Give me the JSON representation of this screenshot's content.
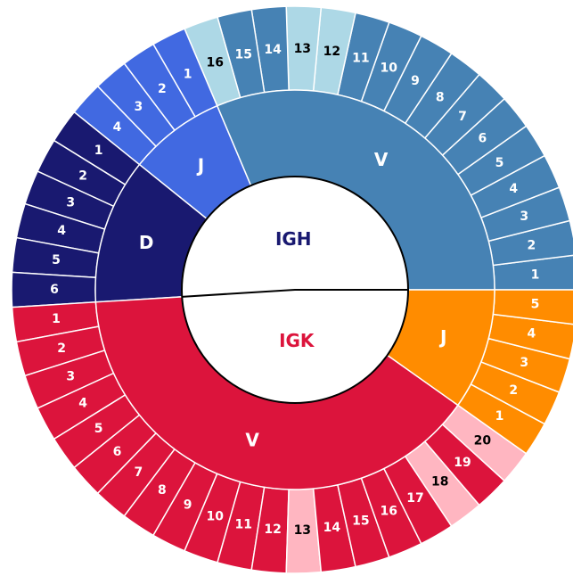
{
  "loci": [
    {
      "label": "IGH",
      "color": "#191970",
      "groups": [
        {
          "label": "V",
          "color": "#4682b4",
          "segments": [
            {
              "label": "1",
              "color": "#4682b4"
            },
            {
              "label": "2",
              "color": "#4682b4"
            },
            {
              "label": "3",
              "color": "#4682b4"
            },
            {
              "label": "4",
              "color": "#4682b4"
            },
            {
              "label": "5",
              "color": "#4682b4"
            },
            {
              "label": "6",
              "color": "#4682b4"
            },
            {
              "label": "7",
              "color": "#4682b4"
            },
            {
              "label": "8",
              "color": "#4682b4"
            },
            {
              "label": "9",
              "color": "#4682b4"
            },
            {
              "label": "10",
              "color": "#4682b4"
            },
            {
              "label": "11",
              "color": "#4682b4"
            },
            {
              "label": "12",
              "color": "#add8e6"
            },
            {
              "label": "13",
              "color": "#add8e6"
            },
            {
              "label": "14",
              "color": "#4682b4"
            },
            {
              "label": "15",
              "color": "#4682b4"
            },
            {
              "label": "16",
              "color": "#add8e6"
            }
          ]
        },
        {
          "label": "J",
          "color": "#4169e1",
          "segments": [
            {
              "label": "1",
              "color": "#4169e1"
            },
            {
              "label": "2",
              "color": "#4169e1"
            },
            {
              "label": "3",
              "color": "#4169e1"
            },
            {
              "label": "4",
              "color": "#4169e1"
            }
          ]
        },
        {
          "label": "D",
          "color": "#191970",
          "segments": [
            {
              "label": "1",
              "color": "#191970"
            },
            {
              "label": "2",
              "color": "#191970"
            },
            {
              "label": "3",
              "color": "#191970"
            },
            {
              "label": "4",
              "color": "#191970"
            },
            {
              "label": "5",
              "color": "#191970"
            },
            {
              "label": "6",
              "color": "#191970"
            }
          ]
        }
      ]
    },
    {
      "label": "IGK",
      "color": "#dc143c",
      "groups": [
        {
          "label": "V",
          "color": "#dc143c",
          "segments": [
            {
              "label": "1",
              "color": "#dc143c"
            },
            {
              "label": "2",
              "color": "#dc143c"
            },
            {
              "label": "3",
              "color": "#dc143c"
            },
            {
              "label": "4",
              "color": "#dc143c"
            },
            {
              "label": "5",
              "color": "#dc143c"
            },
            {
              "label": "6",
              "color": "#dc143c"
            },
            {
              "label": "7",
              "color": "#dc143c"
            },
            {
              "label": "8",
              "color": "#dc143c"
            },
            {
              "label": "9",
              "color": "#dc143c"
            },
            {
              "label": "10",
              "color": "#dc143c"
            },
            {
              "label": "11",
              "color": "#dc143c"
            },
            {
              "label": "12",
              "color": "#dc143c"
            },
            {
              "label": "13",
              "color": "#ffb6c1"
            },
            {
              "label": "14",
              "color": "#dc143c"
            },
            {
              "label": "15",
              "color": "#dc143c"
            },
            {
              "label": "16",
              "color": "#dc143c"
            },
            {
              "label": "17",
              "color": "#dc143c"
            },
            {
              "label": "18",
              "color": "#ffb6c1"
            },
            {
              "label": "19",
              "color": "#dc143c"
            },
            {
              "label": "20",
              "color": "#ffb6c1"
            }
          ]
        },
        {
          "label": "J",
          "color": "#ff8c00",
          "segments": [
            {
              "label": "1",
              "color": "#ff8c00"
            },
            {
              "label": "2",
              "color": "#ff8c00"
            },
            {
              "label": "3",
              "color": "#ff8c00"
            },
            {
              "label": "4",
              "color": "#ff8c00"
            },
            {
              "label": "5",
              "color": "#ff8c00"
            }
          ]
        }
      ]
    }
  ]
}
